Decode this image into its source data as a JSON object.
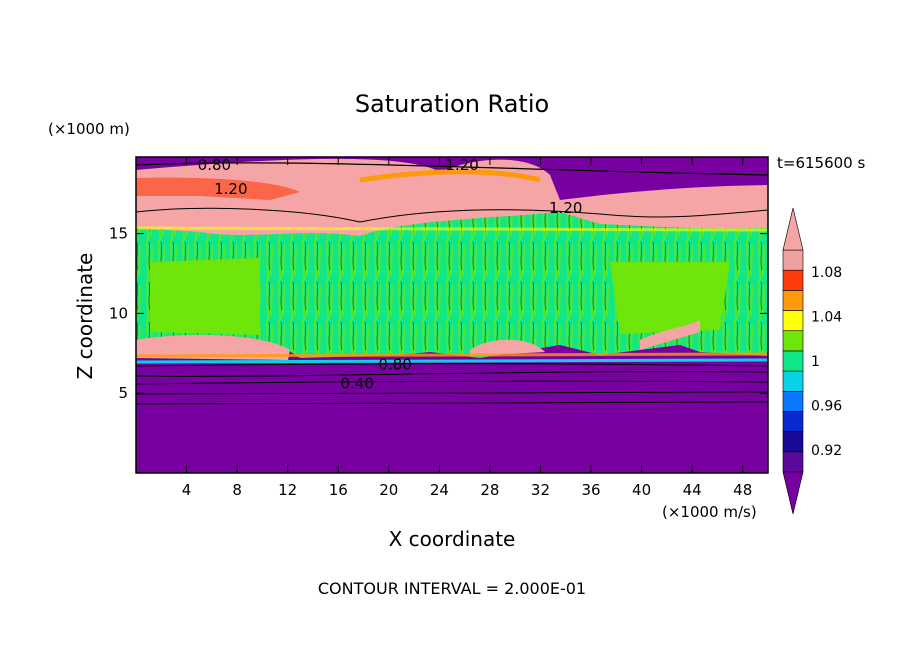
{
  "chart_data": {
    "type": "heatmap",
    "title": "Saturation Ratio",
    "xlabel": "X coordinate",
    "ylabel": "Z coordinate",
    "x_unit": "(×1000 m/s)",
    "y_unit": "(×1000 m)",
    "time_label": "t=615600 s",
    "footer": "CONTOUR INTERVAL = 2.000E-01",
    "xlim": [
      0,
      50
    ],
    "ylim": [
      0,
      19.8
    ],
    "x_ticks": [
      4,
      8,
      12,
      16,
      20,
      24,
      28,
      32,
      36,
      40,
      44,
      48
    ],
    "y_ticks": [
      5,
      10,
      15
    ],
    "contour_labels": [
      {
        "text": "0.80",
        "x": 6.2,
        "z": 19.3
      },
      {
        "text": "1.20",
        "x": 25.8,
        "z": 19.3
      },
      {
        "text": "1.20",
        "x": 7.5,
        "z": 17.8
      },
      {
        "text": "1.20",
        "x": 34.0,
        "z": 16.6
      },
      {
        "text": "0.80",
        "x": 20.5,
        "z": 6.8
      },
      {
        "text": "0.40",
        "x": 17.5,
        "z": 5.6
      }
    ],
    "colorbar": {
      "levels": [
        0.9,
        0.92,
        0.94,
        0.96,
        0.98,
        1.0,
        1.02,
        1.04,
        1.06,
        1.08,
        1.1
      ],
      "tick_labels": [
        "0.92",
        "0.96",
        "1",
        "1.04",
        "1.08"
      ],
      "tick_values": [
        0.92,
        0.96,
        1.0,
        1.04,
        1.08
      ],
      "colors": [
        "#5a0a9a",
        "#1a0a9a",
        "#0a28d2",
        "#0a78ff",
        "#0ad2e6",
        "#10e68a",
        "#6ee60a",
        "#ffff0a",
        "#ff9a0a",
        "#ff3c0a",
        "#f0a0a0"
      ],
      "under_color": "#7800a0",
      "over_color": "#f5a5a5"
    }
  }
}
